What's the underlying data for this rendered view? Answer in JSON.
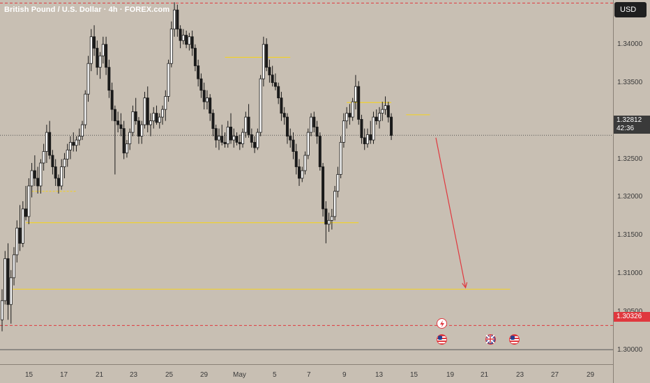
{
  "header": {
    "title": "British Pound / U.S. Dollar · 4h · FOREX.com",
    "currency": "USD"
  },
  "price_axis": {
    "ticks": [
      "1.34000",
      "1.33500",
      "1.33000",
      "1.32500",
      "1.32000",
      "1.31500",
      "1.31000",
      "1.30500",
      "1.30000"
    ],
    "tick_values": [
      1.34,
      1.335,
      1.33,
      1.325,
      1.32,
      1.315,
      1.31,
      1.305,
      1.3
    ],
    "current_price": "1.32812",
    "countdown": "42:36",
    "red_level_label": "1.30326"
  },
  "time_axis": {
    "labels": [
      "15",
      "17",
      "21",
      "23",
      "25",
      "29",
      "May",
      "5",
      "7",
      "9",
      "13",
      "15",
      "19",
      "21",
      "23",
      "27",
      "29"
    ]
  },
  "chart_data": {
    "type": "candlestick",
    "symbol": "British Pound / U.S. Dollar",
    "interval": "4h",
    "source": "FOREX.com",
    "ylim": [
      1.2982,
      1.3458
    ],
    "current_price": 1.32812,
    "dashed_levels": [
      {
        "price": 1.3454,
        "color": "#e0383e",
        "style": "dashed"
      },
      {
        "price": 1.32812,
        "color": "#555555",
        "style": "dotted"
      },
      {
        "price": 1.30326,
        "color": "#e0383e",
        "style": "dashed"
      }
    ],
    "solid_levels": [
      {
        "price": 1.3001,
        "color": "#555555"
      }
    ],
    "horizontal_levels": [
      {
        "price": 1.3383,
        "start_index": 75,
        "end_index": 97
      },
      {
        "price": 1.3324,
        "start_index": 116,
        "end_index": 131
      },
      {
        "price": 1.3308,
        "start_index": 136,
        "end_index": 144
      },
      {
        "price": 1.3208,
        "start_index": 10,
        "end_index": 25
      },
      {
        "price": 1.3167,
        "start_index": 8,
        "end_index": 120
      },
      {
        "price": 1.308,
        "start_index": 3,
        "end_index": 171
      }
    ],
    "projection_arrow": {
      "from_index": 146,
      "from_price": 1.3278,
      "to_index": 156,
      "to_price": 1.3082,
      "color": "#e0383e"
    },
    "candles": [
      [
        1.304,
        1.308,
        1.3025,
        1.3065
      ],
      [
        1.3065,
        1.313,
        1.306,
        1.312
      ],
      [
        1.312,
        1.314,
        1.304,
        1.306
      ],
      [
        1.306,
        1.3105,
        1.3035,
        1.3095
      ],
      [
        1.3095,
        1.3135,
        1.3085,
        1.3125
      ],
      [
        1.3125,
        1.317,
        1.3115,
        1.316
      ],
      [
        1.316,
        1.319,
        1.313,
        1.314
      ],
      [
        1.314,
        1.3195,
        1.3135,
        1.3185
      ],
      [
        1.3185,
        1.3215,
        1.317,
        1.3175
      ],
      [
        1.3175,
        1.3225,
        1.3165,
        1.3215
      ],
      [
        1.3215,
        1.3245,
        1.32,
        1.3235
      ],
      [
        1.3235,
        1.3255,
        1.3215,
        1.3225
      ],
      [
        1.3225,
        1.324,
        1.3205,
        1.3215
      ],
      [
        1.3215,
        1.325,
        1.3205,
        1.3245
      ],
      [
        1.3245,
        1.327,
        1.3235,
        1.326
      ],
      [
        1.326,
        1.3295,
        1.3245,
        1.3285
      ],
      [
        1.3285,
        1.33,
        1.325,
        1.3255
      ],
      [
        1.3255,
        1.3262,
        1.323,
        1.324
      ],
      [
        1.324,
        1.325,
        1.3215,
        1.3225
      ],
      [
        1.3225,
        1.323,
        1.3205,
        1.3215
      ],
      [
        1.3215,
        1.325,
        1.321,
        1.324
      ],
      [
        1.324,
        1.3258,
        1.3225,
        1.325
      ],
      [
        1.325,
        1.327,
        1.324,
        1.3262
      ],
      [
        1.3262,
        1.328,
        1.325,
        1.3272
      ],
      [
        1.3272,
        1.3285,
        1.326,
        1.3268
      ],
      [
        1.3268,
        1.328,
        1.326,
        1.3275
      ],
      [
        1.3275,
        1.329,
        1.3268,
        1.328
      ],
      [
        1.328,
        1.33,
        1.3275,
        1.3295
      ],
      [
        1.3295,
        1.334,
        1.329,
        1.3335
      ],
      [
        1.3335,
        1.3385,
        1.3325,
        1.3375
      ],
      [
        1.3375,
        1.342,
        1.3365,
        1.341
      ],
      [
        1.341,
        1.3425,
        1.3385,
        1.3395
      ],
      [
        1.3395,
        1.3405,
        1.336,
        1.337
      ],
      [
        1.337,
        1.339,
        1.3355,
        1.3385
      ],
      [
        1.3385,
        1.341,
        1.3375,
        1.34
      ],
      [
        1.34,
        1.341,
        1.336,
        1.337
      ],
      [
        1.337,
        1.338,
        1.333,
        1.334
      ],
      [
        1.334,
        1.335,
        1.33,
        1.3315
      ],
      [
        1.3315,
        1.332,
        1.323,
        1.33
      ],
      [
        1.33,
        1.3312,
        1.3285,
        1.3295
      ],
      [
        1.3295,
        1.331,
        1.328,
        1.329
      ],
      [
        1.329,
        1.33,
        1.325,
        1.3258
      ],
      [
        1.3258,
        1.3275,
        1.3252,
        1.327
      ],
      [
        1.327,
        1.329,
        1.3262,
        1.3285
      ],
      [
        1.3285,
        1.332,
        1.328,
        1.3312
      ],
      [
        1.3312,
        1.333,
        1.3295,
        1.33
      ],
      [
        1.33,
        1.3305,
        1.327,
        1.328
      ],
      [
        1.328,
        1.33,
        1.327,
        1.3295
      ],
      [
        1.3295,
        1.3338,
        1.329,
        1.333
      ],
      [
        1.333,
        1.3345,
        1.3285,
        1.3295
      ],
      [
        1.3295,
        1.331,
        1.328,
        1.33
      ],
      [
        1.33,
        1.3318,
        1.329,
        1.331
      ],
      [
        1.331,
        1.332,
        1.3295,
        1.3298
      ],
      [
        1.3298,
        1.331,
        1.329,
        1.3305
      ],
      [
        1.3305,
        1.332,
        1.3295,
        1.3315
      ],
      [
        1.3315,
        1.334,
        1.33,
        1.3332
      ],
      [
        1.3332,
        1.338,
        1.3325,
        1.3375
      ],
      [
        1.3375,
        1.343,
        1.337,
        1.342
      ],
      [
        1.342,
        1.3455,
        1.341,
        1.3445
      ],
      [
        1.3445,
        1.3452,
        1.341,
        1.342
      ],
      [
        1.342,
        1.3425,
        1.3395,
        1.3405
      ],
      [
        1.3405,
        1.342,
        1.34,
        1.3412
      ],
      [
        1.3412,
        1.3418,
        1.3395,
        1.34
      ],
      [
        1.34,
        1.3415,
        1.3392,
        1.341
      ],
      [
        1.341,
        1.3418,
        1.3385,
        1.3395
      ],
      [
        1.3395,
        1.34,
        1.3365,
        1.3372
      ],
      [
        1.3372,
        1.338,
        1.3345,
        1.3355
      ],
      [
        1.3355,
        1.3362,
        1.333,
        1.334
      ],
      [
        1.334,
        1.335,
        1.3315,
        1.3325
      ],
      [
        1.3325,
        1.334,
        1.3315,
        1.333
      ],
      [
        1.333,
        1.3335,
        1.33,
        1.331
      ],
      [
        1.331,
        1.3315,
        1.328,
        1.329
      ],
      [
        1.329,
        1.3295,
        1.3265,
        1.3275
      ],
      [
        1.3275,
        1.329,
        1.3262,
        1.328
      ],
      [
        1.328,
        1.3295,
        1.3268,
        1.3272
      ],
      [
        1.3272,
        1.3285,
        1.3265,
        1.327
      ],
      [
        1.327,
        1.33,
        1.3265,
        1.3292
      ],
      [
        1.3292,
        1.331,
        1.327,
        1.3275
      ],
      [
        1.3275,
        1.329,
        1.3265,
        1.328
      ],
      [
        1.328,
        1.3285,
        1.3268,
        1.3272
      ],
      [
        1.3272,
        1.3282,
        1.3262,
        1.327
      ],
      [
        1.327,
        1.329,
        1.3265,
        1.3285
      ],
      [
        1.3285,
        1.3312,
        1.3278,
        1.3305
      ],
      [
        1.3305,
        1.3322,
        1.3278,
        1.3282
      ],
      [
        1.3282,
        1.329,
        1.3265,
        1.3272
      ],
      [
        1.3272,
        1.328,
        1.3258,
        1.3265
      ],
      [
        1.3265,
        1.329,
        1.3262,
        1.3285
      ],
      [
        1.3285,
        1.336,
        1.328,
        1.3355
      ],
      [
        1.3355,
        1.341,
        1.3345,
        1.34
      ],
      [
        1.34,
        1.3408,
        1.3365,
        1.337
      ],
      [
        1.337,
        1.338,
        1.335,
        1.336
      ],
      [
        1.336,
        1.3372,
        1.3345,
        1.335
      ],
      [
        1.335,
        1.3362,
        1.334,
        1.3345
      ],
      [
        1.3345,
        1.335,
        1.3322,
        1.333
      ],
      [
        1.333,
        1.3338,
        1.33,
        1.331
      ],
      [
        1.331,
        1.3318,
        1.3295,
        1.3305
      ],
      [
        1.3305,
        1.331,
        1.327,
        1.328
      ],
      [
        1.328,
        1.329,
        1.3265,
        1.3275
      ],
      [
        1.3275,
        1.3285,
        1.325,
        1.326
      ],
      [
        1.326,
        1.327,
        1.323,
        1.324
      ],
      [
        1.324,
        1.325,
        1.3215,
        1.3225
      ],
      [
        1.3225,
        1.324,
        1.322,
        1.3235
      ],
      [
        1.3235,
        1.326,
        1.323,
        1.3255
      ],
      [
        1.3255,
        1.329,
        1.325,
        1.3285
      ],
      [
        1.3285,
        1.331,
        1.328,
        1.3305
      ],
      [
        1.3305,
        1.3312,
        1.3285,
        1.3292
      ],
      [
        1.3292,
        1.33,
        1.327,
        1.328
      ],
      [
        1.328,
        1.3285,
        1.3235,
        1.324
      ],
      [
        1.324,
        1.3245,
        1.3175,
        1.3185
      ],
      [
        1.3185,
        1.3195,
        1.314,
        1.3165
      ],
      [
        1.3165,
        1.318,
        1.3155,
        1.317
      ],
      [
        1.317,
        1.3185,
        1.3158,
        1.3175
      ],
      [
        1.3175,
        1.3215,
        1.317,
        1.3208
      ],
      [
        1.3208,
        1.324,
        1.32,
        1.323
      ],
      [
        1.323,
        1.328,
        1.3225,
        1.3272
      ],
      [
        1.3272,
        1.331,
        1.3265,
        1.33
      ],
      [
        1.33,
        1.3318,
        1.329,
        1.331
      ],
      [
        1.331,
        1.3322,
        1.3295,
        1.3305
      ],
      [
        1.3305,
        1.333,
        1.33,
        1.3325
      ],
      [
        1.3325,
        1.336,
        1.3315,
        1.3345
      ],
      [
        1.3345,
        1.3352,
        1.3295,
        1.3302
      ],
      [
        1.3302,
        1.3308,
        1.327,
        1.3278
      ],
      [
        1.3278,
        1.329,
        1.3262,
        1.327
      ],
      [
        1.327,
        1.329,
        1.3265,
        1.3282
      ],
      [
        1.3282,
        1.33,
        1.327,
        1.3275
      ],
      [
        1.3275,
        1.3312,
        1.327,
        1.3305
      ],
      [
        1.3305,
        1.3315,
        1.3295,
        1.33
      ],
      [
        1.33,
        1.3318,
        1.329,
        1.331
      ],
      [
        1.331,
        1.3325,
        1.33,
        1.3315
      ],
      [
        1.3315,
        1.3332,
        1.3308,
        1.332
      ],
      [
        1.332,
        1.3325,
        1.3298,
        1.3305
      ],
      [
        1.3305,
        1.331,
        1.3275,
        1.3281
      ]
    ]
  }
}
